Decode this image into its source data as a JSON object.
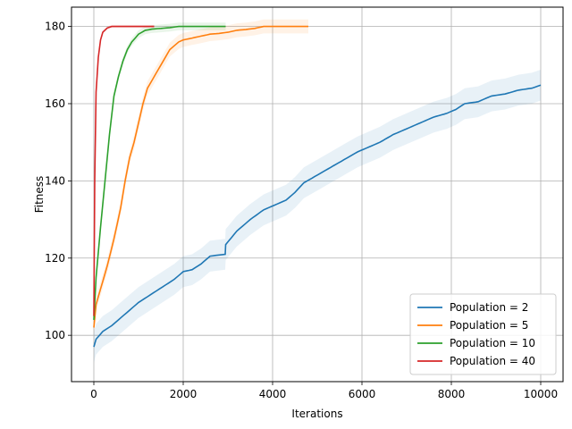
{
  "chart_data": {
    "type": "line",
    "title": "",
    "xlabel": "Iterations",
    "ylabel": "Fitness",
    "xlim": [
      -500,
      10500
    ],
    "ylim": [
      88,
      185
    ],
    "xticks": [
      0,
      2000,
      4000,
      6000,
      8000,
      10000
    ],
    "xtick_labels": [
      "0",
      "2000",
      "4000",
      "6000",
      "8000",
      "10000"
    ],
    "yticks": [
      100,
      120,
      140,
      160,
      180
    ],
    "ytick_labels": [
      "100",
      "120",
      "140",
      "160",
      "180"
    ],
    "grid": true,
    "legend_position": "bottom-right",
    "series": [
      {
        "name": "Population = 2",
        "color": "#1f77b4",
        "band_spread": 4,
        "points": [
          [
            0,
            97
          ],
          [
            50,
            99
          ],
          [
            200,
            101
          ],
          [
            400,
            102.5
          ],
          [
            600,
            104.5
          ],
          [
            800,
            106.5
          ],
          [
            1000,
            108.5
          ],
          [
            1200,
            110
          ],
          [
            1400,
            111.5
          ],
          [
            1600,
            113
          ],
          [
            1800,
            114.5
          ],
          [
            2000,
            116.5
          ],
          [
            2200,
            117
          ],
          [
            2400,
            118.5
          ],
          [
            2600,
            120.5
          ],
          [
            2940,
            121
          ],
          [
            2950,
            123.5
          ],
          [
            3200,
            127
          ],
          [
            3500,
            130
          ],
          [
            3800,
            132.5
          ],
          [
            4100,
            134
          ],
          [
            4300,
            135
          ],
          [
            4500,
            137
          ],
          [
            4700,
            139.5
          ],
          [
            5000,
            141.5
          ],
          [
            5300,
            143.5
          ],
          [
            5600,
            145.5
          ],
          [
            5900,
            147.5
          ],
          [
            6100,
            148.5
          ],
          [
            6400,
            150
          ],
          [
            6700,
            152
          ],
          [
            7000,
            153.5
          ],
          [
            7300,
            155
          ],
          [
            7600,
            156.5
          ],
          [
            7900,
            157.5
          ],
          [
            8100,
            158.5
          ],
          [
            8300,
            160
          ],
          [
            8600,
            160.5
          ],
          [
            8900,
            162
          ],
          [
            9200,
            162.5
          ],
          [
            9500,
            163.5
          ],
          [
            9800,
            164
          ],
          [
            10000,
            164.8
          ]
        ]
      },
      {
        "name": "Population = 5",
        "color": "#ff7f0e",
        "band_spread": 1.8,
        "points": [
          [
            0,
            102
          ],
          [
            50,
            108
          ],
          [
            150,
            112
          ],
          [
            300,
            118
          ],
          [
            450,
            125
          ],
          [
            600,
            133
          ],
          [
            700,
            140
          ],
          [
            800,
            146
          ],
          [
            900,
            150
          ],
          [
            1000,
            155
          ],
          [
            1100,
            160
          ],
          [
            1200,
            164
          ],
          [
            1300,
            166
          ],
          [
            1400,
            168
          ],
          [
            1500,
            170
          ],
          [
            1600,
            172
          ],
          [
            1700,
            174
          ],
          [
            1800,
            175
          ],
          [
            1900,
            176
          ],
          [
            2000,
            176.5
          ],
          [
            2200,
            177
          ],
          [
            2400,
            177.5
          ],
          [
            2600,
            178
          ],
          [
            2800,
            178.2
          ],
          [
            3000,
            178.5
          ],
          [
            3200,
            179
          ],
          [
            3400,
            179.2
          ],
          [
            3600,
            179.5
          ],
          [
            3800,
            180
          ],
          [
            4000,
            180
          ],
          [
            4800,
            180
          ]
        ]
      },
      {
        "name": "Population = 10",
        "color": "#2ca02c",
        "band_spread": 1,
        "points": [
          [
            0,
            104
          ],
          [
            50,
            115
          ],
          [
            150,
            128
          ],
          [
            250,
            140
          ],
          [
            350,
            152
          ],
          [
            450,
            162
          ],
          [
            550,
            167
          ],
          [
            650,
            171
          ],
          [
            750,
            174
          ],
          [
            850,
            176
          ],
          [
            1000,
            178
          ],
          [
            1150,
            179
          ],
          [
            1300,
            179.3
          ],
          [
            1500,
            179.5
          ],
          [
            1700,
            179.7
          ],
          [
            1900,
            180
          ],
          [
            2950,
            180
          ]
        ]
      },
      {
        "name": "Population = 40",
        "color": "#d62728",
        "band_spread": 0.4,
        "points": [
          [
            0,
            105
          ],
          [
            20,
            140
          ],
          [
            50,
            163
          ],
          [
            100,
            172
          ],
          [
            150,
            176.5
          ],
          [
            200,
            178.5
          ],
          [
            300,
            179.6
          ],
          [
            400,
            180
          ],
          [
            1350,
            180
          ]
        ]
      }
    ]
  }
}
